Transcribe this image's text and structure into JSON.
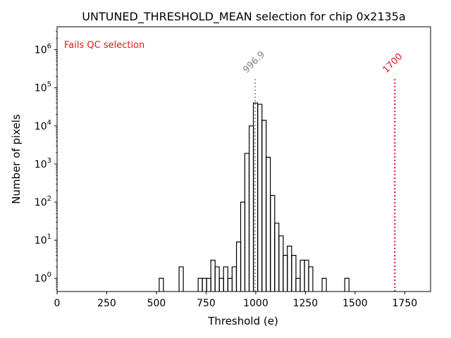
{
  "chart_data": {
    "type": "histogram",
    "title": "UNTUNED_THRESHOLD_MEAN selection for chip 0x2135a",
    "xlabel": "Threshold (e)",
    "ylabel": "Number of pixels",
    "xlim": [
      0,
      1880
    ],
    "ylim": [
      0.45,
      4000000
    ],
    "yscale": "log",
    "x_ticks": [
      0,
      250,
      500,
      750,
      1000,
      1250,
      1500,
      1750
    ],
    "x_tick_labels": [
      "0",
      "250",
      "500",
      "750",
      "1000",
      "1250",
      "1500",
      "1750"
    ],
    "y_ticks": [
      1,
      10,
      100,
      1000,
      10000,
      100000,
      1000000
    ],
    "y_tick_exponents": [
      "0",
      "1",
      "2",
      "3",
      "4",
      "5",
      "6"
    ],
    "y_tick_base": "10",
    "bin_width": 21.4,
    "bins": [
      {
        "x": 514,
        "count": 1
      },
      {
        "x": 614,
        "count": 2
      },
      {
        "x": 710,
        "count": 1
      },
      {
        "x": 731,
        "count": 1
      },
      {
        "x": 753,
        "count": 1
      },
      {
        "x": 774,
        "count": 3
      },
      {
        "x": 795,
        "count": 2
      },
      {
        "x": 817,
        "count": 1
      },
      {
        "x": 838,
        "count": 2
      },
      {
        "x": 860,
        "count": 1
      },
      {
        "x": 881,
        "count": 2
      },
      {
        "x": 903,
        "count": 9
      },
      {
        "x": 924,
        "count": 100
      },
      {
        "x": 945,
        "count": 1900
      },
      {
        "x": 967,
        "count": 10000
      },
      {
        "x": 988,
        "count": 40000
      },
      {
        "x": 1010,
        "count": 37000
      },
      {
        "x": 1031,
        "count": 14000
      },
      {
        "x": 1052,
        "count": 1500
      },
      {
        "x": 1074,
        "count": 150
      },
      {
        "x": 1095,
        "count": 28
      },
      {
        "x": 1117,
        "count": 13
      },
      {
        "x": 1138,
        "count": 4
      },
      {
        "x": 1159,
        "count": 7
      },
      {
        "x": 1181,
        "count": 4
      },
      {
        "x": 1202,
        "count": 1
      },
      {
        "x": 1224,
        "count": 3
      },
      {
        "x": 1245,
        "count": 3
      },
      {
        "x": 1266,
        "count": 2
      },
      {
        "x": 1334,
        "count": 1
      },
      {
        "x": 1448,
        "count": 1
      }
    ],
    "mean_line": {
      "x": 996.9,
      "label": "996.9",
      "color": "#808080"
    },
    "cut_line": {
      "x": 1700,
      "label": "1700",
      "color": "#e8141c"
    },
    "annotation": {
      "text": "Fails QC selection",
      "color": "#e8141c"
    }
  }
}
